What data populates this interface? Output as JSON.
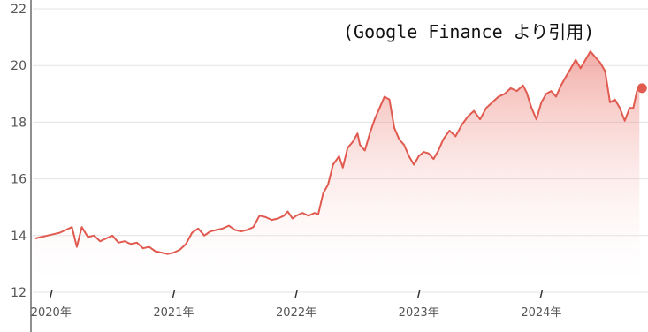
{
  "chart_data": {
    "type": "area",
    "annotation": "(Google Finance より引用)",
    "ylim": [
      12,
      22
    ],
    "yticks": [
      12,
      14,
      16,
      18,
      20,
      22
    ],
    "xlim": [
      2019.85,
      2024.87
    ],
    "xticks": [
      {
        "value": 2020.0,
        "label": "2020年"
      },
      {
        "value": 2021.0,
        "label": "2021年"
      },
      {
        "value": 2022.0,
        "label": "2022年"
      },
      {
        "value": 2023.0,
        "label": "2023年"
      },
      {
        "value": 2024.0,
        "label": "2024年"
      }
    ],
    "grid": "horizontal",
    "series": [
      {
        "color": "#e05a4f",
        "points": [
          [
            2019.87,
            13.9
          ],
          [
            2019.92,
            13.95
          ],
          [
            2019.97,
            14.0
          ],
          [
            2020.02,
            14.05
          ],
          [
            2020.07,
            14.1
          ],
          [
            2020.12,
            14.2
          ],
          [
            2020.17,
            14.3
          ],
          [
            2020.21,
            13.6
          ],
          [
            2020.25,
            14.3
          ],
          [
            2020.3,
            13.95
          ],
          [
            2020.35,
            14.0
          ],
          [
            2020.4,
            13.8
          ],
          [
            2020.45,
            13.9
          ],
          [
            2020.5,
            14.0
          ],
          [
            2020.55,
            13.75
          ],
          [
            2020.6,
            13.8
          ],
          [
            2020.65,
            13.7
          ],
          [
            2020.7,
            13.75
          ],
          [
            2020.75,
            13.55
          ],
          [
            2020.8,
            13.6
          ],
          [
            2020.85,
            13.45
          ],
          [
            2020.9,
            13.4
          ],
          [
            2020.95,
            13.35
          ],
          [
            2021.0,
            13.4
          ],
          [
            2021.05,
            13.5
          ],
          [
            2021.1,
            13.7
          ],
          [
            2021.15,
            14.1
          ],
          [
            2021.2,
            14.25
          ],
          [
            2021.25,
            14.0
          ],
          [
            2021.3,
            14.15
          ],
          [
            2021.35,
            14.2
          ],
          [
            2021.4,
            14.25
          ],
          [
            2021.45,
            14.35
          ],
          [
            2021.5,
            14.2
          ],
          [
            2021.55,
            14.15
          ],
          [
            2021.6,
            14.2
          ],
          [
            2021.65,
            14.3
          ],
          [
            2021.7,
            14.7
          ],
          [
            2021.75,
            14.65
          ],
          [
            2021.8,
            14.55
          ],
          [
            2021.85,
            14.6
          ],
          [
            2021.9,
            14.7
          ],
          [
            2021.93,
            14.85
          ],
          [
            2021.97,
            14.6
          ],
          [
            2022.0,
            14.7
          ],
          [
            2022.05,
            14.8
          ],
          [
            2022.1,
            14.7
          ],
          [
            2022.15,
            14.8
          ],
          [
            2022.18,
            14.75
          ],
          [
            2022.22,
            15.5
          ],
          [
            2022.26,
            15.8
          ],
          [
            2022.3,
            16.5
          ],
          [
            2022.35,
            16.8
          ],
          [
            2022.38,
            16.4
          ],
          [
            2022.42,
            17.1
          ],
          [
            2022.46,
            17.3
          ],
          [
            2022.5,
            17.6
          ],
          [
            2022.52,
            17.2
          ],
          [
            2022.56,
            17.0
          ],
          [
            2022.6,
            17.6
          ],
          [
            2022.64,
            18.1
          ],
          [
            2022.68,
            18.5
          ],
          [
            2022.72,
            18.9
          ],
          [
            2022.76,
            18.8
          ],
          [
            2022.8,
            17.8
          ],
          [
            2022.84,
            17.4
          ],
          [
            2022.88,
            17.2
          ],
          [
            2022.92,
            16.8
          ],
          [
            2022.96,
            16.5
          ],
          [
            2023.0,
            16.8
          ],
          [
            2023.04,
            16.95
          ],
          [
            2023.08,
            16.9
          ],
          [
            2023.12,
            16.7
          ],
          [
            2023.16,
            17.0
          ],
          [
            2023.2,
            17.4
          ],
          [
            2023.25,
            17.7
          ],
          [
            2023.3,
            17.5
          ],
          [
            2023.35,
            17.9
          ],
          [
            2023.4,
            18.2
          ],
          [
            2023.45,
            18.4
          ],
          [
            2023.5,
            18.1
          ],
          [
            2023.55,
            18.5
          ],
          [
            2023.6,
            18.7
          ],
          [
            2023.65,
            18.9
          ],
          [
            2023.7,
            19.0
          ],
          [
            2023.75,
            19.2
          ],
          [
            2023.8,
            19.1
          ],
          [
            2023.85,
            19.3
          ],
          [
            2023.88,
            19.05
          ],
          [
            2023.92,
            18.5
          ],
          [
            2023.96,
            18.1
          ],
          [
            2024.0,
            18.7
          ],
          [
            2024.04,
            19.0
          ],
          [
            2024.08,
            19.1
          ],
          [
            2024.12,
            18.9
          ],
          [
            2024.16,
            19.3
          ],
          [
            2024.2,
            19.6
          ],
          [
            2024.24,
            19.9
          ],
          [
            2024.28,
            20.2
          ],
          [
            2024.32,
            19.9
          ],
          [
            2024.36,
            20.2
          ],
          [
            2024.4,
            20.5
          ],
          [
            2024.44,
            20.3
          ],
          [
            2024.48,
            20.1
          ],
          [
            2024.52,
            19.8
          ],
          [
            2024.56,
            18.7
          ],
          [
            2024.6,
            18.8
          ],
          [
            2024.64,
            18.5
          ],
          [
            2024.68,
            18.05
          ],
          [
            2024.72,
            18.5
          ],
          [
            2024.75,
            18.5
          ],
          [
            2024.78,
            19.1
          ],
          [
            2024.8,
            19.2
          ]
        ]
      }
    ],
    "last_point_marker": true
  }
}
